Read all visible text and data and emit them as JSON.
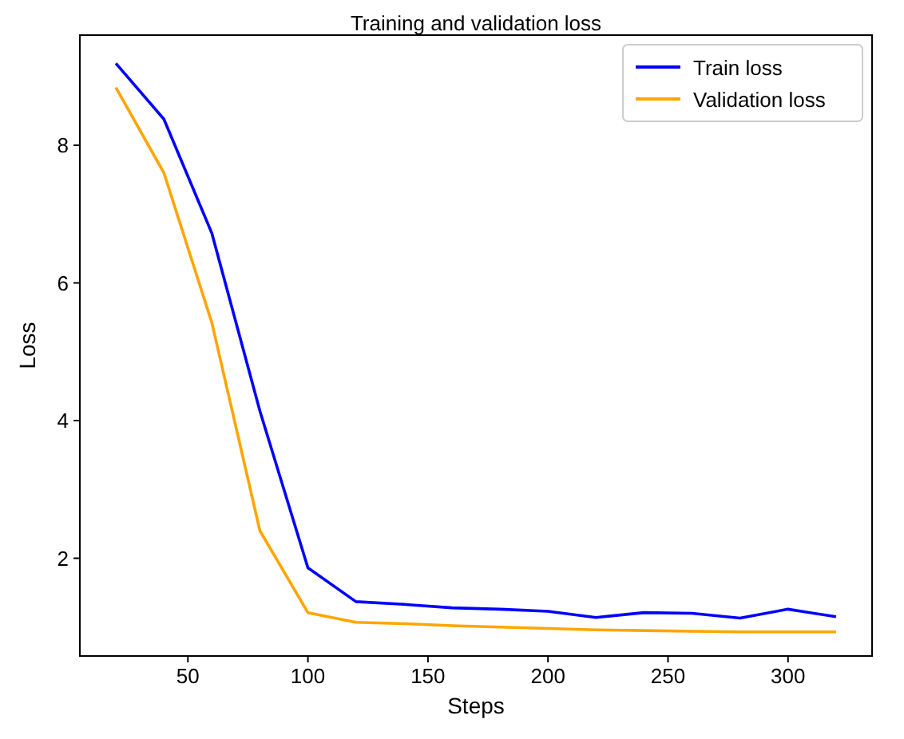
{
  "chart_data": {
    "type": "line",
    "title": "Training and validation loss",
    "xlabel": "Steps",
    "ylabel": "Loss",
    "x": [
      20,
      40,
      60,
      80,
      100,
      120,
      140,
      160,
      180,
      200,
      220,
      240,
      260,
      280,
      300,
      320
    ],
    "series": [
      {
        "name": "Train loss",
        "color": "#0000ff",
        "values": [
          9.19,
          8.38,
          6.72,
          4.14,
          1.86,
          1.37,
          1.33,
          1.28,
          1.26,
          1.23,
          1.14,
          1.21,
          1.2,
          1.13,
          1.26,
          1.15
        ]
      },
      {
        "name": "Validation loss",
        "color": "#ffa500",
        "values": [
          8.84,
          7.6,
          5.42,
          2.4,
          1.21,
          1.07,
          1.05,
          1.02,
          1.0,
          0.98,
          0.96,
          0.95,
          0.94,
          0.93,
          0.93,
          0.93
        ]
      }
    ],
    "xlim": [
      5,
      335
    ],
    "ylim": [
      0.58,
      9.6
    ],
    "xticks": [
      50,
      100,
      150,
      200,
      250,
      300
    ],
    "yticks": [
      2,
      4,
      6,
      8
    ],
    "legend": "top right",
    "grid": false,
    "marker": "none",
    "line_style": "solid"
  }
}
